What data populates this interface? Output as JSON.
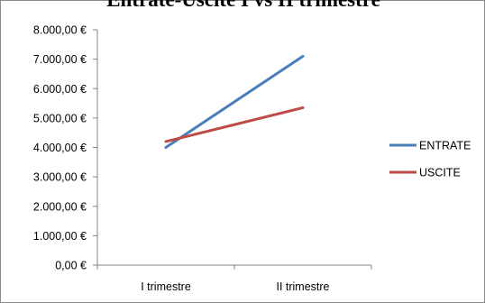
{
  "chart_data": {
    "type": "line",
    "title": "Entrate-Uscite I vs II trimestre",
    "xlabel": "",
    "ylabel": "",
    "categories": [
      "I trimestre",
      "II trimestre"
    ],
    "y_ticks": [
      "0,00 €",
      "1.000,00 €",
      "2.000,00 €",
      "3.000,00 €",
      "4.000,00 €",
      "5.000,00 €",
      "6.000,00 €",
      "7.000,00 €",
      "8.000,00 €"
    ],
    "ylim": [
      0,
      8000
    ],
    "grid": false,
    "legend_position": "right",
    "series": [
      {
        "name": "ENTRATE",
        "values": [
          4000,
          7100
        ],
        "color": "#4a7ebb"
      },
      {
        "name": "USCITE",
        "values": [
          4200,
          5350
        ],
        "color": "#be4b48"
      }
    ]
  }
}
